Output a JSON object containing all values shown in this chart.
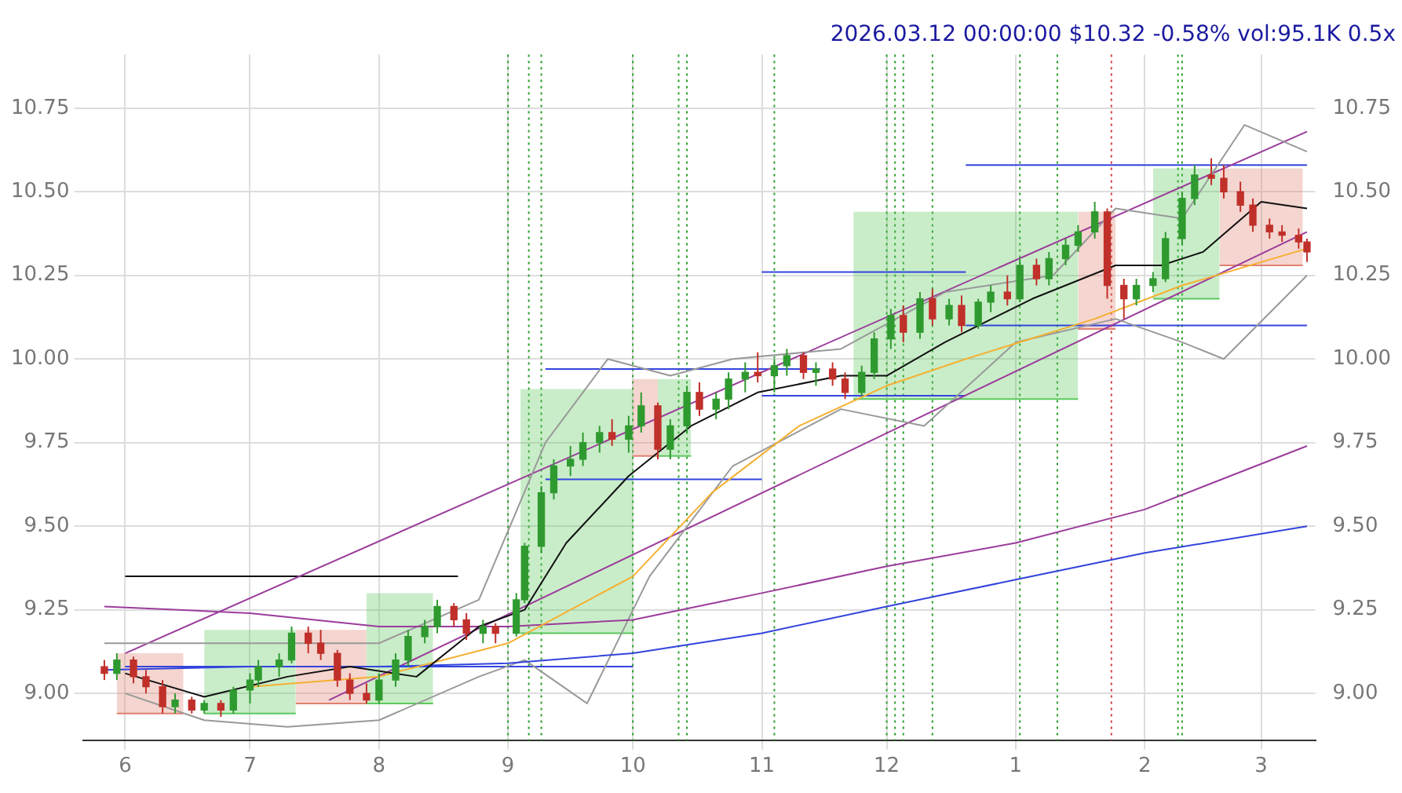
{
  "chart_data": {
    "type": "candlestick",
    "title": "2026.03.12 00:00:00 $10.32 -0.58% vol:95.1K 0.5x",
    "xlim": [
      "2025-05-22",
      "2026-03-14"
    ],
    "xticks": [
      {
        "value": "2025-06-01",
        "label": "6"
      },
      {
        "value": "2025-07-01",
        "label": "7"
      },
      {
        "value": "2025-08-01",
        "label": "8"
      },
      {
        "value": "2025-09-01",
        "label": "9"
      },
      {
        "value": "2025-10-01",
        "label": "10"
      },
      {
        "value": "2025-11-01",
        "label": "11"
      },
      {
        "value": "2025-12-01",
        "label": "12"
      },
      {
        "value": "2026-01-01",
        "label": "1"
      },
      {
        "value": "2026-02-01",
        "label": "2"
      },
      {
        "value": "2026-03-01",
        "label": "3"
      }
    ],
    "ylim": [
      8.86,
      10.91
    ],
    "yticks": [
      {
        "value": 9,
        "label": "9.00"
      },
      {
        "value": 9.25,
        "label": "9.25"
      },
      {
        "value": 9.5,
        "label": "9.50"
      },
      {
        "value": 9.75,
        "label": "9.75"
      },
      {
        "value": 10,
        "label": "10.00"
      },
      {
        "value": 10.25,
        "label": "10.25"
      },
      {
        "value": 10.5,
        "label": "10.50"
      },
      {
        "value": 10.75,
        "label": "10.75"
      }
    ],
    "y2lim": [
      8.86,
      10.91
    ],
    "y2ticks": [
      {
        "value": 9,
        "label": "9.00"
      },
      {
        "value": 9.25,
        "label": "9.25"
      },
      {
        "value": 9.5,
        "label": "9.50"
      },
      {
        "value": 9.75,
        "label": "9.75"
      },
      {
        "value": 10,
        "label": "10.00"
      },
      {
        "value": 10.25,
        "label": "10.25"
      },
      {
        "value": 10.5,
        "label": "10.50"
      },
      {
        "value": 10.75,
        "label": "10.75"
      }
    ],
    "grid": true,
    "legend": false,
    "x": [
      "2025-05-27",
      "2025-05-30",
      "2025-06-03",
      "2025-06-06",
      "2025-06-10",
      "2025-06-13",
      "2025-06-17",
      "2025-06-20",
      "2025-06-24",
      "2025-06-27",
      "2025-07-01",
      "2025-07-03",
      "2025-07-08",
      "2025-07-11",
      "2025-07-15",
      "2025-07-18",
      "2025-07-22",
      "2025-07-25",
      "2025-07-29",
      "2025-08-01",
      "2025-08-05",
      "2025-08-08",
      "2025-08-12",
      "2025-08-15",
      "2025-08-19",
      "2025-08-22",
      "2025-08-26",
      "2025-08-29",
      "2025-09-03",
      "2025-09-05",
      "2025-09-09",
      "2025-09-12",
      "2025-09-16",
      "2025-09-19",
      "2025-09-23",
      "2025-09-26",
      "2025-09-30",
      "2025-10-03",
      "2025-10-07",
      "2025-10-10",
      "2025-10-14",
      "2025-10-17",
      "2025-10-21",
      "2025-10-24",
      "2025-10-28",
      "2025-10-31",
      "2025-11-04",
      "2025-11-07",
      "2025-11-11",
      "2025-11-14",
      "2025-11-18",
      "2025-11-21",
      "2025-11-25",
      "2025-11-28",
      "2025-12-02",
      "2025-12-05",
      "2025-12-09",
      "2025-12-12",
      "2025-12-16",
      "2025-12-19",
      "2025-12-23",
      "2025-12-26",
      "2025-12-30",
      "2026-01-02",
      "2026-01-06",
      "2026-01-09",
      "2026-01-13",
      "2026-01-16",
      "2026-01-20",
      "2026-01-23",
      "2026-01-27",
      "2026-01-30",
      "2026-02-03",
      "2026-02-06",
      "2026-02-10",
      "2026-02-13",
      "2026-02-17",
      "2026-02-20",
      "2026-02-24",
      "2026-02-27",
      "2026-03-03",
      "2026-03-06",
      "2026-03-10",
      "2026-03-12"
    ],
    "ohlc": [
      [
        9.08,
        9.1,
        9.04,
        9.06
      ],
      [
        9.06,
        9.12,
        9.04,
        9.1
      ],
      [
        9.1,
        9.11,
        9.03,
        9.05
      ],
      [
        9.05,
        9.07,
        9.0,
        9.02
      ],
      [
        9.02,
        9.04,
        8.94,
        8.96
      ],
      [
        8.96,
        9.0,
        8.94,
        8.98
      ],
      [
        8.98,
        8.99,
        8.94,
        8.95
      ],
      [
        8.95,
        8.98,
        8.94,
        8.97
      ],
      [
        8.97,
        8.98,
        8.93,
        8.95
      ],
      [
        8.95,
        9.02,
        8.94,
        9.01
      ],
      [
        9.01,
        9.06,
        8.97,
        9.04
      ],
      [
        9.04,
        9.1,
        9.02,
        9.08
      ],
      [
        9.08,
        9.12,
        9.05,
        9.1
      ],
      [
        9.1,
        9.2,
        9.09,
        9.18
      ],
      [
        9.18,
        9.2,
        9.12,
        9.15
      ],
      [
        9.15,
        9.19,
        9.1,
        9.12
      ],
      [
        9.12,
        9.13,
        9.02,
        9.04
      ],
      [
        9.04,
        9.06,
        8.98,
        9.0
      ],
      [
        9.0,
        9.03,
        8.97,
        8.98
      ],
      [
        8.98,
        9.06,
        8.97,
        9.04
      ],
      [
        9.04,
        9.12,
        9.02,
        9.1
      ],
      [
        9.1,
        9.19,
        9.08,
        9.17
      ],
      [
        9.17,
        9.22,
        9.15,
        9.2
      ],
      [
        9.2,
        9.28,
        9.18,
        9.26
      ],
      [
        9.26,
        9.27,
        9.2,
        9.22
      ],
      [
        9.22,
        9.24,
        9.16,
        9.18
      ],
      [
        9.18,
        9.22,
        9.15,
        9.2
      ],
      [
        9.2,
        9.21,
        9.15,
        9.18
      ],
      [
        9.18,
        9.3,
        9.17,
        9.28
      ],
      [
        9.28,
        9.45,
        9.27,
        9.44
      ],
      [
        9.44,
        9.62,
        9.42,
        9.6
      ],
      [
        9.6,
        9.7,
        9.58,
        9.68
      ],
      [
        9.68,
        9.74,
        9.65,
        9.7
      ],
      [
        9.7,
        9.78,
        9.68,
        9.75
      ],
      [
        9.75,
        9.8,
        9.72,
        9.78
      ],
      [
        9.78,
        9.82,
        9.74,
        9.76
      ],
      [
        9.76,
        9.83,
        9.72,
        9.8
      ],
      [
        9.8,
        9.9,
        9.78,
        9.86
      ],
      [
        9.86,
        9.87,
        9.7,
        9.73
      ],
      [
        9.73,
        9.82,
        9.7,
        9.8
      ],
      [
        9.8,
        9.92,
        9.78,
        9.9
      ],
      [
        9.9,
        9.93,
        9.83,
        9.85
      ],
      [
        9.85,
        9.9,
        9.82,
        9.88
      ],
      [
        9.88,
        9.96,
        9.85,
        9.94
      ],
      [
        9.94,
        9.99,
        9.9,
        9.96
      ],
      [
        9.96,
        10.02,
        9.93,
        9.95
      ],
      [
        9.95,
        10.0,
        9.9,
        9.98
      ],
      [
        9.98,
        10.03,
        9.95,
        10.01
      ],
      [
        10.01,
        10.02,
        9.94,
        9.96
      ],
      [
        9.96,
        9.99,
        9.92,
        9.97
      ],
      [
        9.97,
        9.99,
        9.92,
        9.94
      ],
      [
        9.94,
        9.96,
        9.88,
        9.9
      ],
      [
        9.9,
        9.98,
        9.89,
        9.96
      ],
      [
        9.96,
        10.08,
        9.94,
        10.06
      ],
      [
        10.06,
        10.15,
        10.03,
        10.13
      ],
      [
        10.13,
        10.16,
        10.05,
        10.08
      ],
      [
        10.08,
        10.2,
        10.06,
        10.18
      ],
      [
        10.18,
        10.21,
        10.1,
        10.12
      ],
      [
        10.12,
        10.18,
        10.1,
        10.16
      ],
      [
        10.16,
        10.19,
        10.08,
        10.1
      ],
      [
        10.1,
        10.18,
        10.09,
        10.17
      ],
      [
        10.17,
        10.22,
        10.14,
        10.2
      ],
      [
        10.2,
        10.25,
        10.16,
        10.18
      ],
      [
        10.18,
        10.3,
        10.17,
        10.28
      ],
      [
        10.28,
        10.3,
        10.22,
        10.24
      ],
      [
        10.24,
        10.32,
        10.22,
        10.3
      ],
      [
        10.3,
        10.36,
        10.28,
        10.34
      ],
      [
        10.34,
        10.4,
        10.32,
        10.38
      ],
      [
        10.38,
        10.47,
        10.36,
        10.44
      ],
      [
        10.44,
        10.45,
        10.18,
        10.22
      ],
      [
        10.22,
        10.24,
        10.12,
        10.18
      ],
      [
        10.18,
        10.24,
        10.16,
        10.22
      ],
      [
        10.22,
        10.26,
        10.2,
        10.24
      ],
      [
        10.24,
        10.38,
        10.23,
        10.36
      ],
      [
        10.36,
        10.5,
        10.34,
        10.48
      ],
      [
        10.48,
        10.58,
        10.46,
        10.55
      ],
      [
        10.55,
        10.6,
        10.52,
        10.54
      ],
      [
        10.54,
        10.58,
        10.48,
        10.5
      ],
      [
        10.5,
        10.53,
        10.44,
        10.46
      ],
      [
        10.46,
        10.48,
        10.38,
        10.4
      ],
      [
        10.4,
        10.42,
        10.36,
        10.38
      ],
      [
        10.38,
        10.4,
        10.35,
        10.37
      ],
      [
        10.37,
        10.39,
        10.33,
        10.35
      ],
      [
        10.35,
        10.36,
        10.29,
        10.32
      ]
    ],
    "series": [
      {
        "type": "line",
        "color": "#111111",
        "x": [
          "2025-06-01",
          "2025-06-20",
          "2025-07-10",
          "2025-07-25",
          "2025-08-10",
          "2025-08-25",
          "2025-09-05",
          "2025-09-15",
          "2025-09-30",
          "2025-10-15",
          "2025-10-31",
          "2025-11-20",
          "2025-12-01",
          "2025-12-15",
          "2026-01-05",
          "2026-01-25",
          "2026-02-05",
          "2026-02-15",
          "2026-03-01",
          "2026-03-12"
        ],
        "values": [
          9.06,
          8.99,
          9.05,
          9.08,
          9.05,
          9.2,
          9.25,
          9.45,
          9.65,
          9.8,
          9.9,
          9.95,
          9.95,
          10.05,
          10.18,
          10.28,
          10.28,
          10.32,
          10.47,
          10.45
        ]
      },
      {
        "type": "line",
        "color": "#f5b031",
        "x": [
          "2025-07-01",
          "2025-08-01",
          "2025-09-01",
          "2025-10-01",
          "2025-10-20",
          "2025-11-10",
          "2025-12-01",
          "2025-12-20",
          "2026-01-20",
          "2026-02-10",
          "2026-03-12"
        ],
        "values": [
          9.02,
          9.05,
          9.15,
          9.35,
          9.6,
          9.8,
          9.92,
          10,
          10.12,
          10.22,
          10.33
        ]
      },
      {
        "type": "line",
        "color": "#9b3c9b",
        "x": [
          "2025-05-27",
          "2025-07-01",
          "2025-08-01",
          "2025-09-01",
          "2025-10-01",
          "2025-11-01",
          "2025-12-01",
          "2026-01-01",
          "2026-02-01",
          "2026-03-12"
        ],
        "values": [
          9.26,
          9.24,
          9.2,
          9.2,
          9.22,
          9.3,
          9.38,
          9.45,
          9.55,
          9.74
        ]
      },
      {
        "type": "line",
        "color": "#3344dd",
        "x": [
          "2025-05-27",
          "2025-07-01",
          "2025-08-01",
          "2025-09-01",
          "2025-10-01",
          "2025-11-01",
          "2025-12-01",
          "2026-01-01",
          "2026-02-01",
          "2026-03-12"
        ],
        "values": [
          9.07,
          9.08,
          9.08,
          9.09,
          9.12,
          9.18,
          9.26,
          9.34,
          9.42,
          9.5
        ]
      },
      {
        "type": "line",
        "color": "#999999",
        "x": [
          "2025-05-27",
          "2025-07-01",
          "2025-08-01",
          "2025-08-25",
          "2025-09-10",
          "2025-09-25",
          "2025-10-10",
          "2025-10-25",
          "2025-11-20",
          "2025-12-15",
          "2026-01-10",
          "2026-01-25",
          "2026-02-10",
          "2026-02-25",
          "2026-03-12"
        ],
        "values": [
          9.15,
          9.15,
          9.15,
          9.28,
          9.75,
          10,
          9.95,
          10,
          10.03,
          10.2,
          10.25,
          10.45,
          10.42,
          10.7,
          10.62
        ]
      },
      {
        "type": "line",
        "color": "#999999",
        "x": [
          "2025-06-01",
          "2025-06-20",
          "2025-07-10",
          "2025-08-01",
          "2025-08-25",
          "2025-09-05",
          "2025-09-20",
          "2025-10-05",
          "2025-10-25",
          "2025-11-20",
          "2025-12-10",
          "2026-01-01",
          "2026-01-25",
          "2026-02-10",
          "2026-02-20",
          "2026-03-12"
        ],
        "values": [
          9,
          8.92,
          8.9,
          8.92,
          9.05,
          9.1,
          8.97,
          9.35,
          9.68,
          9.85,
          9.8,
          10.05,
          10.12,
          10.05,
          10,
          10.25
        ]
      },
      {
        "type": "line",
        "color": "#9b3c9b",
        "x": [
          "2025-06-01",
          "2026-03-12"
        ],
        "values": [
          9.12,
          10.68
        ]
      },
      {
        "type": "line",
        "color": "#9b3c9b",
        "x": [
          "2025-07-20",
          "2026-03-12"
        ],
        "values": [
          8.98,
          10.38
        ]
      },
      {
        "type": "line",
        "color": "#111111",
        "x": [
          "2025-06-01",
          "2025-08-20"
        ],
        "values": [
          9.35,
          9.35
        ]
      },
      {
        "type": "line",
        "color": "#3344dd",
        "x": [
          "2025-06-01",
          "2025-10-01"
        ],
        "values": [
          9.08,
          9.08
        ]
      },
      {
        "type": "line",
        "color": "#3344dd",
        "x": [
          "2025-09-10",
          "2025-11-15"
        ],
        "values": [
          9.97,
          9.97
        ]
      },
      {
        "type": "line",
        "color": "#3344dd",
        "x": [
          "2025-09-10",
          "2025-11-01"
        ],
        "values": [
          9.64,
          9.64
        ]
      },
      {
        "type": "line",
        "color": "#3344dd",
        "x": [
          "2025-11-01",
          "2025-12-20"
        ],
        "values": [
          10.26,
          10.26
        ]
      },
      {
        "type": "line",
        "color": "#3344dd",
        "x": [
          "2025-11-01",
          "2025-12-20"
        ],
        "values": [
          9.89,
          9.89
        ]
      },
      {
        "type": "line",
        "color": "#3344dd",
        "x": [
          "2025-12-20",
          "2026-03-12"
        ],
        "values": [
          10.58,
          10.58
        ]
      },
      {
        "type": "line",
        "color": "#3344dd",
        "x": [
          "2025-12-20",
          "2026-03-12"
        ],
        "values": [
          10.1,
          10.1
        ]
      },
      {
        "type": "line",
        "color": "#e08070",
        "x": [
          "2025-05-30",
          "2025-06-15"
        ],
        "values": [
          8.94,
          8.94
        ],
        "lower": [
          8.94,
          8.94
        ],
        "upper": [
          9.12,
          9.12
        ]
      },
      {
        "type": "line",
        "color": "#5cc85c",
        "x": [
          "2025-06-20",
          "2025-07-12"
        ],
        "values": [
          8.94,
          8.94
        ],
        "lower": [
          8.94,
          8.94
        ],
        "upper": [
          9.19,
          9.19
        ]
      },
      {
        "type": "line",
        "color": "#e08070",
        "x": [
          "2025-07-12",
          "2025-07-29"
        ],
        "values": [
          8.97,
          8.97
        ],
        "lower": [
          8.97,
          8.97
        ],
        "upper": [
          9.19,
          9.19
        ]
      },
      {
        "type": "line",
        "color": "#5cc85c",
        "x": [
          "2025-07-29",
          "2025-08-14"
        ],
        "values": [
          8.97,
          8.97
        ],
        "lower": [
          8.97,
          8.97
        ],
        "upper": [
          9.3,
          9.3
        ]
      },
      {
        "type": "line",
        "color": "#5cc85c",
        "x": [
          "2025-09-04",
          "2025-10-01"
        ],
        "values": [
          9.18,
          9.18
        ],
        "lower": [
          9.18,
          9.18
        ],
        "upper": [
          9.91,
          9.91
        ]
      },
      {
        "type": "line",
        "color": "#e08070",
        "x": [
          "2025-10-01",
          "2025-10-07"
        ],
        "values": [
          9.71,
          9.71
        ],
        "lower": [
          9.71,
          9.71
        ],
        "upper": [
          9.94,
          9.94
        ]
      },
      {
        "type": "line",
        "color": "#5cc85c",
        "x": [
          "2025-10-07",
          "2025-10-15"
        ],
        "values": [
          9.71,
          9.71
        ],
        "lower": [
          9.71,
          9.71
        ],
        "upper": [
          9.94,
          9.94
        ]
      },
      {
        "type": "line",
        "color": "#5cc85c",
        "x": [
          "2025-11-23",
          "2026-01-16"
        ],
        "values": [
          9.88,
          9.88
        ],
        "lower": [
          9.88,
          9.88
        ],
        "upper": [
          10.44,
          10.44
        ]
      },
      {
        "type": "line",
        "color": "#e08070",
        "x": [
          "2026-01-16",
          "2026-01-25"
        ],
        "values": [
          10.09,
          10.09
        ],
        "lower": [
          10.09,
          10.09
        ],
        "upper": [
          10.44,
          10.44
        ]
      },
      {
        "type": "line",
        "color": "#5cc85c",
        "x": [
          "2026-02-03",
          "2026-02-19"
        ],
        "values": [
          10.18,
          10.18
        ],
        "lower": [
          10.18,
          10.18
        ],
        "upper": [
          10.57,
          10.57
        ]
      },
      {
        "type": "line",
        "color": "#e08070",
        "x": [
          "2026-02-19",
          "2026-03-11"
        ],
        "values": [
          10.28,
          10.28
        ],
        "lower": [
          10.28,
          10.28
        ],
        "upper": [
          10.57,
          10.57
        ]
      }
    ],
    "ref_lines": [
      {
        "axis": "x",
        "value": "2025-09-01",
        "color": "#2e9e2e",
        "line_style": "dotted"
      },
      {
        "axis": "x",
        "value": "2025-09-06",
        "color": "#2e9e2e",
        "line_style": "dotted"
      },
      {
        "axis": "x",
        "value": "2025-09-09",
        "color": "#2e9e2e",
        "line_style": "dotted"
      },
      {
        "axis": "x",
        "value": "2025-10-01",
        "color": "#2e9e2e",
        "line_style": "dotted"
      },
      {
        "axis": "x",
        "value": "2025-10-12",
        "color": "#2e9e2e",
        "line_style": "dotted"
      },
      {
        "axis": "x",
        "value": "2025-10-14",
        "color": "#2e9e2e",
        "line_style": "dotted"
      },
      {
        "axis": "x",
        "value": "2025-11-04",
        "color": "#2e9e2e",
        "line_style": "dotted"
      },
      {
        "axis": "x",
        "value": "2025-12-01",
        "color": "#2e9e2e",
        "line_style": "dotted"
      },
      {
        "axis": "x",
        "value": "2025-12-03",
        "color": "#2e9e2e",
        "line_style": "dotted"
      },
      {
        "axis": "x",
        "value": "2025-12-05",
        "color": "#2e9e2e",
        "line_style": "dotted"
      },
      {
        "axis": "x",
        "value": "2025-12-12",
        "color": "#2e9e2e",
        "line_style": "dotted"
      },
      {
        "axis": "x",
        "value": "2026-01-02",
        "color": "#2e9e2e",
        "line_style": "dotted"
      },
      {
        "axis": "x",
        "value": "2026-01-11",
        "color": "#2e9e2e",
        "line_style": "dotted"
      },
      {
        "axis": "x",
        "value": "2026-01-24",
        "color": "#d04040",
        "line_style": "dotted"
      },
      {
        "axis": "x",
        "value": "2026-02-09",
        "color": "#2e9e2e",
        "line_style": "dotted"
      },
      {
        "axis": "x",
        "value": "2026-02-10",
        "color": "#2e9e2e",
        "line_style": "dotted"
      }
    ]
  }
}
